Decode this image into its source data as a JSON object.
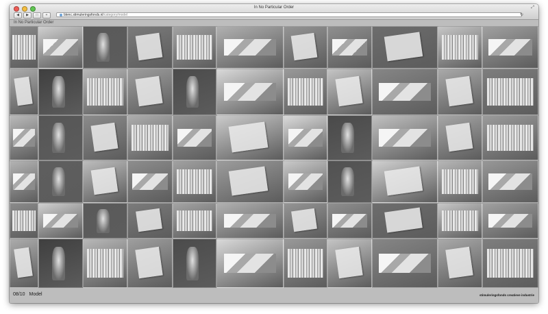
{
  "window": {
    "title": "In No Particular Order",
    "fullscreen_glyph": "⤢"
  },
  "toolbar": {
    "back_glyph": "◀",
    "forward_glyph": "▶",
    "reader_glyph": "□",
    "add_glyph": "+",
    "reload_glyph": "↻",
    "address_host": "blenc.stimuleringsfonds.nl",
    "address_path": "/category/model"
  },
  "site": {
    "title": "In No Particular Order",
    "pager": "08/10",
    "category": "Model",
    "credit": "stimuleringsfonds creatieve industrie"
  },
  "colors": {
    "background": "#bdbdbd",
    "text": "#1a1a1a"
  },
  "mosaic": {
    "description_icon": "photo-tile",
    "tiles": [
      {
        "kind": "shelf",
        "shade": "#8a8a8a"
      },
      {
        "kind": "fold",
        "shade": "#cfcfcf"
      },
      {
        "kind": "dark",
        "shade": "#5a5a5a"
      },
      {
        "kind": "book",
        "shade": "#7b7b7b"
      },
      {
        "kind": "shelf",
        "shade": "#a3a3a3"
      },
      {
        "kind": "fold",
        "shade": "#b0b0b0"
      },
      {
        "kind": "book",
        "shade": "#949494"
      },
      {
        "kind": "fold",
        "shade": "#8f8f8f"
      },
      {
        "kind": "book",
        "shade": "#6d6d6d"
      },
      {
        "kind": "shelf",
        "shade": "#c6c6c6"
      },
      {
        "kind": "fold",
        "shade": "#a0a0a0"
      },
      {
        "kind": "book",
        "shade": "#ababab"
      },
      {
        "kind": "dark",
        "shade": "#3f3f3f"
      },
      {
        "kind": "shelf",
        "shade": "#b8b8b8"
      },
      {
        "kind": "book",
        "shade": "#9e9e9e"
      },
      {
        "kind": "dark",
        "shade": "#4b4b4b"
      },
      {
        "kind": "fold",
        "shade": "#d9d9d9"
      },
      {
        "kind": "shelf",
        "shade": "#999999"
      },
      {
        "kind": "book",
        "shade": "#c4c4c4"
      },
      {
        "kind": "fold",
        "shade": "#868686"
      },
      {
        "kind": "book",
        "shade": "#a9a9a9"
      },
      {
        "kind": "shelf",
        "shade": "#7e7e7e"
      },
      {
        "kind": "fold",
        "shade": "#b9b9b9"
      },
      {
        "kind": "dark",
        "shade": "#565656"
      },
      {
        "kind": "book",
        "shade": "#8b8b8b"
      },
      {
        "kind": "shelf",
        "shade": "#adadad"
      },
      {
        "kind": "fold",
        "shade": "#959595"
      },
      {
        "kind": "book",
        "shade": "#cacaca"
      },
      {
        "kind": "fold",
        "shade": "#dadada"
      },
      {
        "kind": "dark",
        "shade": "#4a4a4a"
      },
      {
        "kind": "fold",
        "shade": "#c0c0c0"
      },
      {
        "kind": "book",
        "shade": "#a6a6a6"
      },
      {
        "kind": "shelf",
        "shade": "#9b9b9b"
      },
      {
        "kind": "fold",
        "shade": "#b3b3b3"
      },
      {
        "kind": "dark",
        "shade": "#5e5e5e"
      },
      {
        "kind": "book",
        "shade": "#bcbcbc"
      },
      {
        "kind": "fold",
        "shade": "#8d8d8d"
      },
      {
        "kind": "shelf",
        "shade": "#a1a1a1"
      },
      {
        "kind": "book",
        "shade": "#9c9c9c"
      },
      {
        "kind": "fold",
        "shade": "#c9c9c9"
      },
      {
        "kind": "dark",
        "shade": "#525252"
      },
      {
        "kind": "book",
        "shade": "#d0d0d0"
      },
      {
        "kind": "shelf",
        "shade": "#b6b6b6"
      },
      {
        "kind": "fold",
        "shade": "#979797"
      }
    ]
  }
}
